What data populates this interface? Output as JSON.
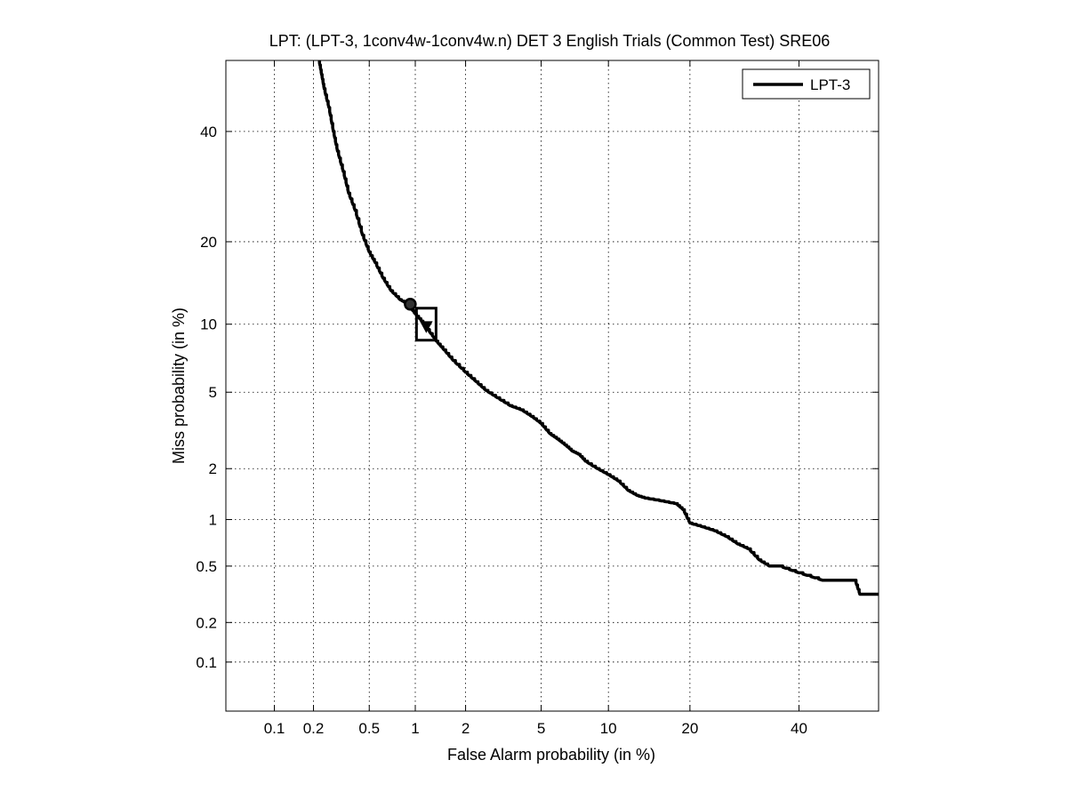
{
  "chart_data": {
    "type": "line",
    "title": "LPT: (LPT-3, 1conv4w-1conv4w.n) DET 3 English Trials (Common Test) SRE06",
    "xlabel": "False Alarm probability (in %)",
    "ylabel": "Miss probability (in %)",
    "x_scale": "normal-deviate (probit)",
    "y_scale": "normal-deviate (probit)",
    "xlim": [
      0.04,
      57
    ],
    "ylim": [
      0.04,
      55
    ],
    "x_ticks": [
      0.1,
      0.2,
      0.5,
      1,
      2,
      5,
      10,
      20,
      40
    ],
    "x_tick_labels": [
      "0.1",
      "0.2",
      "0.5",
      "1",
      "2",
      "5",
      "10",
      "20",
      "40"
    ],
    "y_ticks": [
      0.1,
      0.2,
      0.5,
      1,
      2,
      5,
      10,
      20,
      40
    ],
    "y_tick_labels": [
      "0.1",
      "0.2",
      "0.5",
      "1",
      "2",
      "5",
      "10",
      "20",
      "40"
    ],
    "grid": true,
    "legend_position": "top-right",
    "series": [
      {
        "name": "LPT-3",
        "color": "#000000",
        "x": [
          0.22,
          0.23,
          0.24,
          0.26,
          0.28,
          0.3,
          0.33,
          0.36,
          0.4,
          0.45,
          0.5,
          0.55,
          0.62,
          0.7,
          0.8,
          0.9,
          1.0,
          1.1,
          1.2,
          1.35,
          1.5,
          1.7,
          2.0,
          2.3,
          2.6,
          3.0,
          3.5,
          4.0,
          4.5,
          5.0,
          5.5,
          6.0,
          6.5,
          7.0,
          7.5,
          8.0,
          9.0,
          10.0,
          11.0,
          12.0,
          13.0,
          14.0,
          16.0,
          18.0,
          19.0,
          20.0,
          22.0,
          24.0,
          26.0,
          28.0,
          30.0,
          32.0,
          34.0,
          36.0,
          40.0,
          45.0,
          50.0,
          52.0,
          53.0,
          57.0
        ],
        "y": [
          55.0,
          52.0,
          49.0,
          45.0,
          40.0,
          36.0,
          32.0,
          28.0,
          25.0,
          21.0,
          18.5,
          17.0,
          15.0,
          13.5,
          12.5,
          12.0,
          11.0,
          10.3,
          9.5,
          8.5,
          7.8,
          7.0,
          6.2,
          5.6,
          5.1,
          4.7,
          4.3,
          4.1,
          3.8,
          3.5,
          3.1,
          2.9,
          2.7,
          2.5,
          2.4,
          2.2,
          2.0,
          1.85,
          1.7,
          1.5,
          1.4,
          1.35,
          1.3,
          1.25,
          1.15,
          0.95,
          0.9,
          0.85,
          0.78,
          0.7,
          0.65,
          0.55,
          0.5,
          0.5,
          0.45,
          0.4,
          0.4,
          0.4,
          0.32,
          0.32
        ]
      }
    ],
    "markers": [
      {
        "shape": "circle",
        "x": 0.93,
        "y": 12.0
      },
      {
        "shape": "box",
        "x": 1.17,
        "y": 10.0
      },
      {
        "shape": "triangle",
        "x": 1.17,
        "y": 9.8
      }
    ]
  }
}
